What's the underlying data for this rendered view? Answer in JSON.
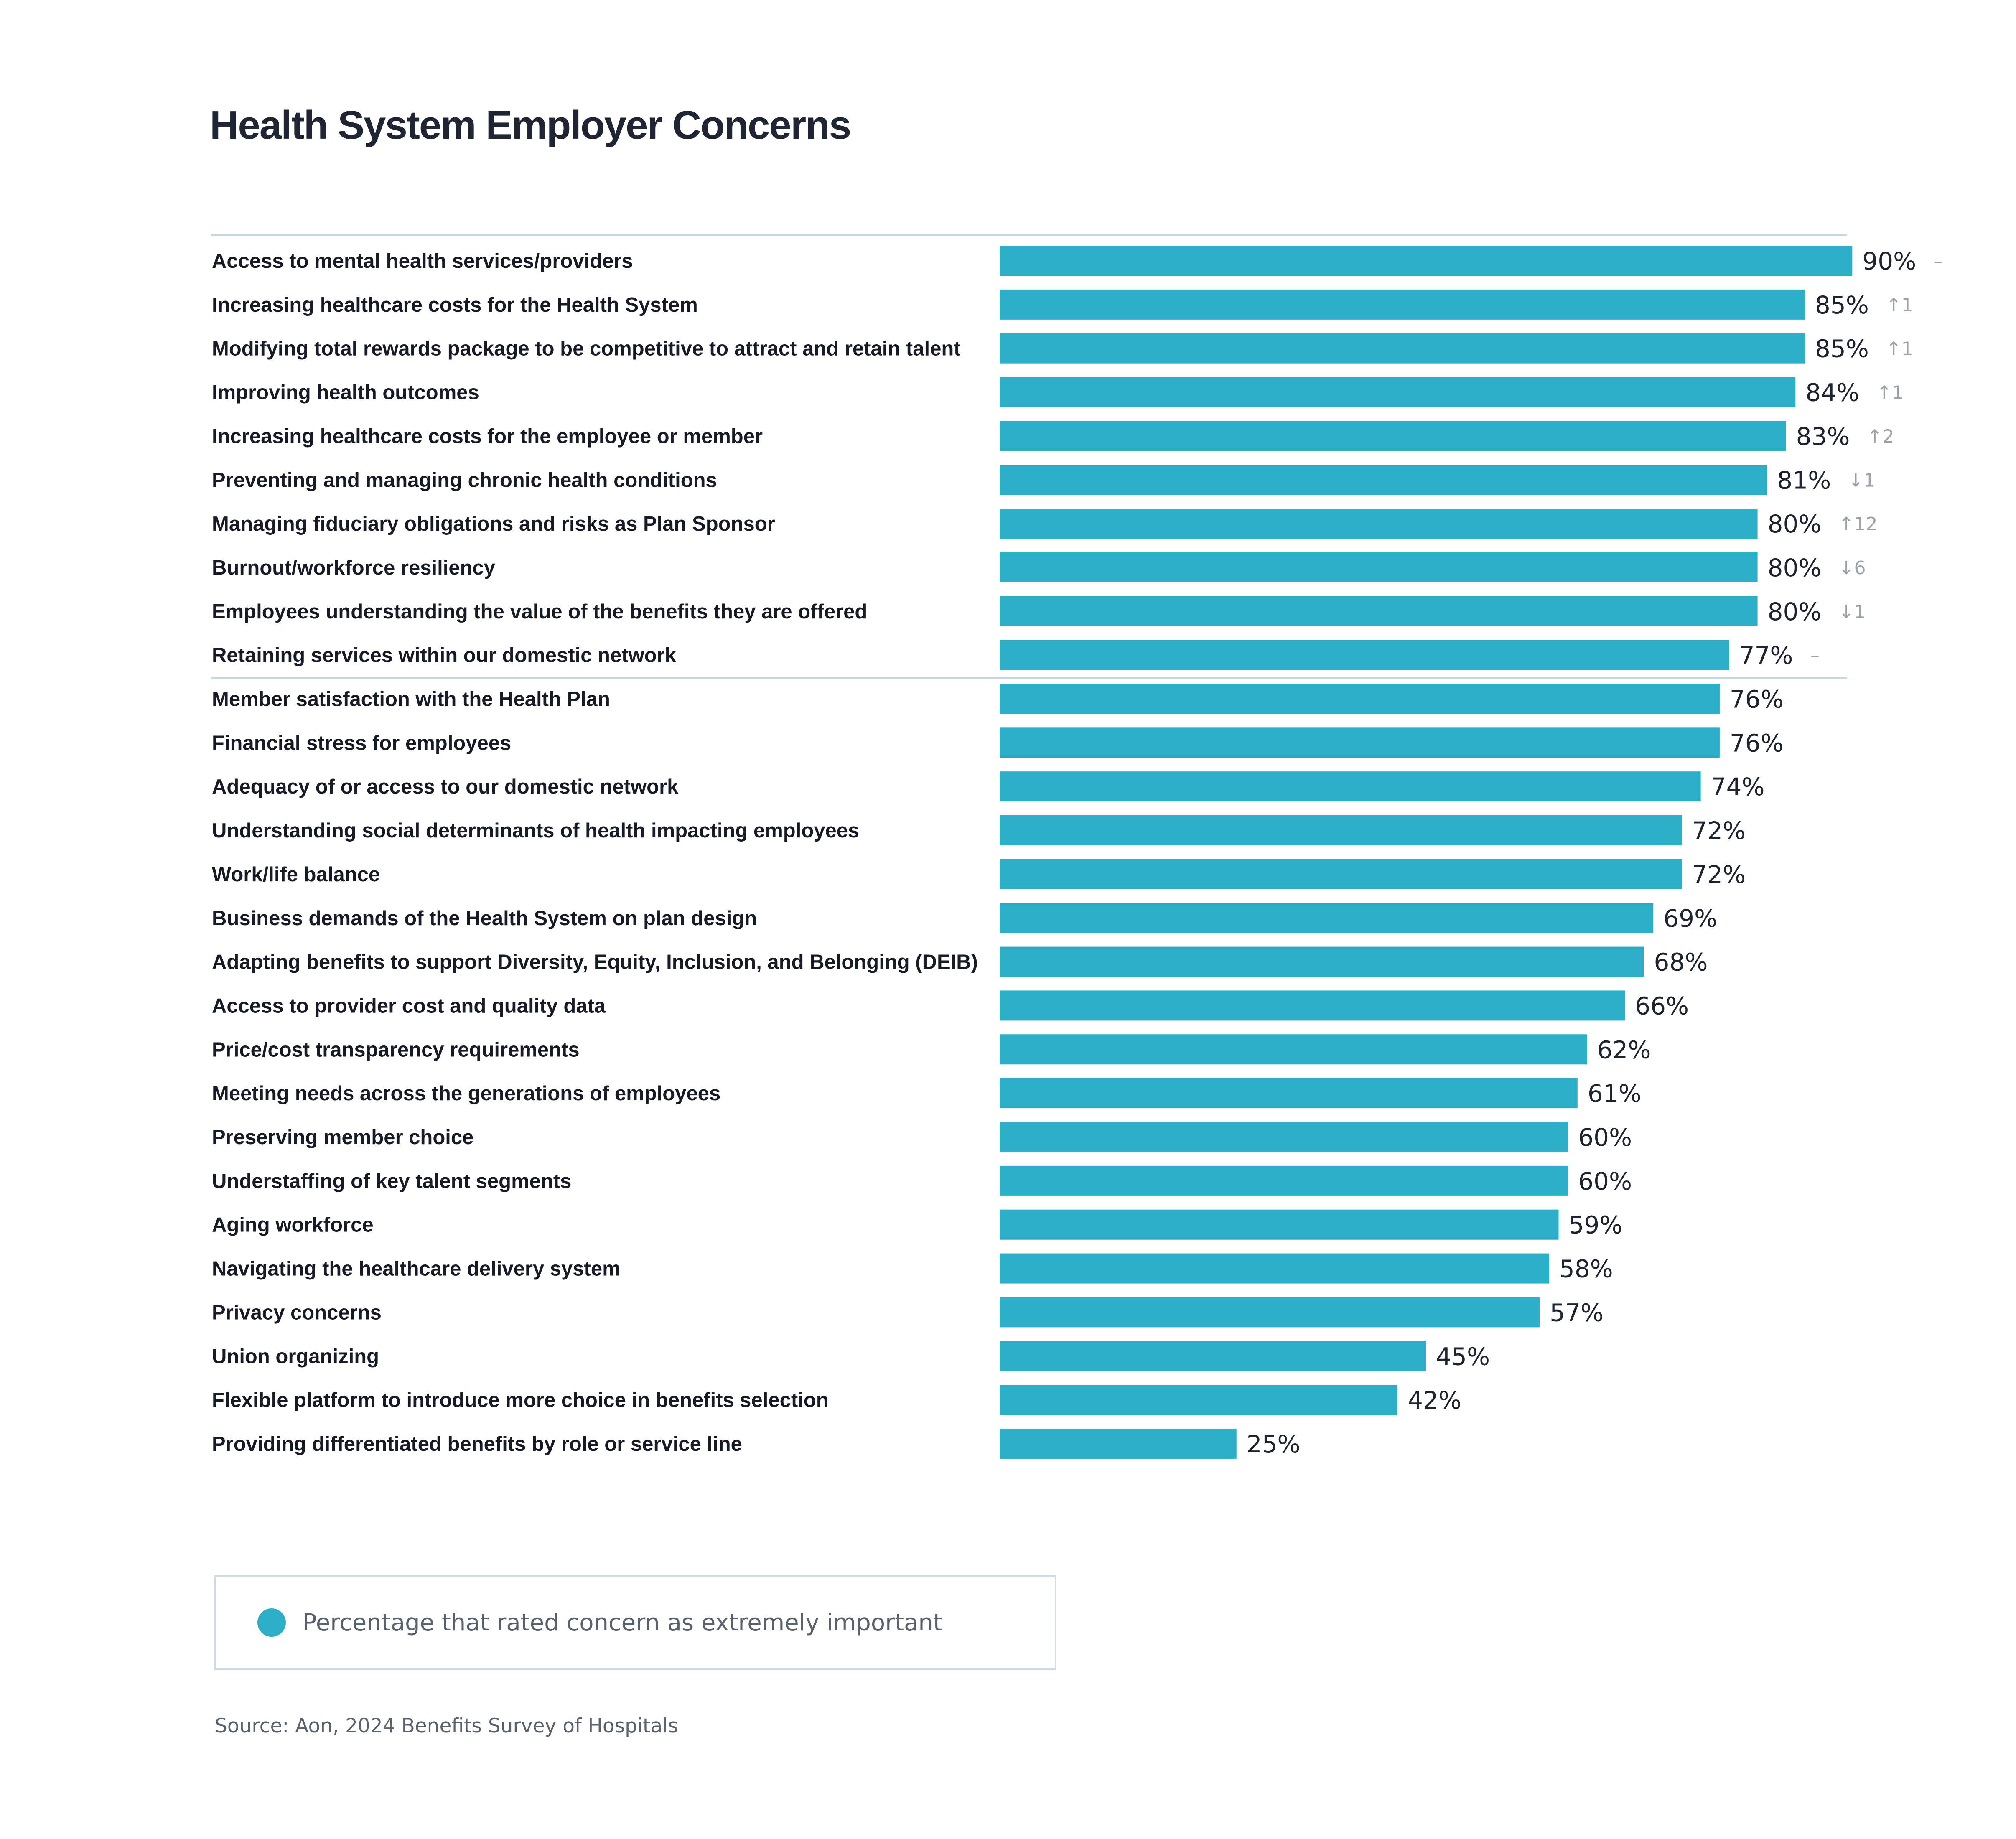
{
  "chart_data": {
    "type": "bar",
    "orientation": "horizontal",
    "title": "Health System Employer Concerns",
    "categories": [
      "Access to mental health services/providers",
      "Increasing healthcare costs for the Health System",
      "Modifying total rewards package to be competitive to attract and retain talent",
      "Improving health outcomes",
      "Increasing healthcare costs for the employee or member",
      "Preventing and managing chronic health conditions",
      "Managing fiduciary obligations and risks as Plan Sponsor",
      "Burnout/workforce resiliency",
      "Employees understanding the value of the benefits they are offered",
      "Retaining services within our domestic network",
      "Member satisfaction with the Health Plan",
      "Financial stress for employees",
      "Adequacy of or access to our domestic network",
      "Understanding social determinants of health impacting employees",
      "Work/life balance",
      "Business demands of the Health System on plan design",
      "Adapting benefits to support Diversity, Equity, Inclusion, and Belonging (DEIB)",
      "Access to provider cost and quality data",
      "Price/cost transparency requirements",
      "Meeting needs across the generations of employees",
      "Preserving member choice",
      "Understaffing of key talent segments",
      "Aging workforce",
      "Navigating the healthcare delivery system",
      "Privacy concerns",
      "Union organizing",
      "Flexible platform to introduce more choice in benefits selection",
      "Providing differentiated benefits by role or service line"
    ],
    "values": [
      90,
      85,
      85,
      84,
      83,
      81,
      80,
      80,
      80,
      77,
      76,
      76,
      74,
      72,
      72,
      69,
      68,
      66,
      62,
      61,
      60,
      60,
      59,
      58,
      57,
      45,
      42,
      25
    ],
    "value_labels": [
      "90%",
      "85%",
      "85%",
      "84%",
      "83%",
      "81%",
      "80%",
      "80%",
      "80%",
      "77%",
      "76%",
      "76%",
      "74%",
      "72%",
      "72%",
      "69%",
      "68%",
      "66%",
      "62%",
      "61%",
      "60%",
      "60%",
      "59%",
      "58%",
      "57%",
      "45%",
      "42%",
      "25%"
    ],
    "rank_changes": [
      "–",
      "↑1",
      "↑1",
      "↑1",
      "↑2",
      "↓1",
      "↑12",
      "↓6",
      "↓1",
      "–"
    ],
    "xlim": [
      0,
      100
    ],
    "grid": false,
    "legend": {
      "position": "bottom-left",
      "entries": [
        {
          "label": "Percentage that rated concern as extremely important",
          "color": "#2cafc6"
        }
      ]
    },
    "source": "Source: Aon, 2024 Benefits Survey of Hospitals"
  },
  "colors": {
    "bar": "#2cafc6",
    "text": "#161b26",
    "muted": "#59616c",
    "divider": "#cbdade",
    "legend_border": "#cfdde2"
  }
}
